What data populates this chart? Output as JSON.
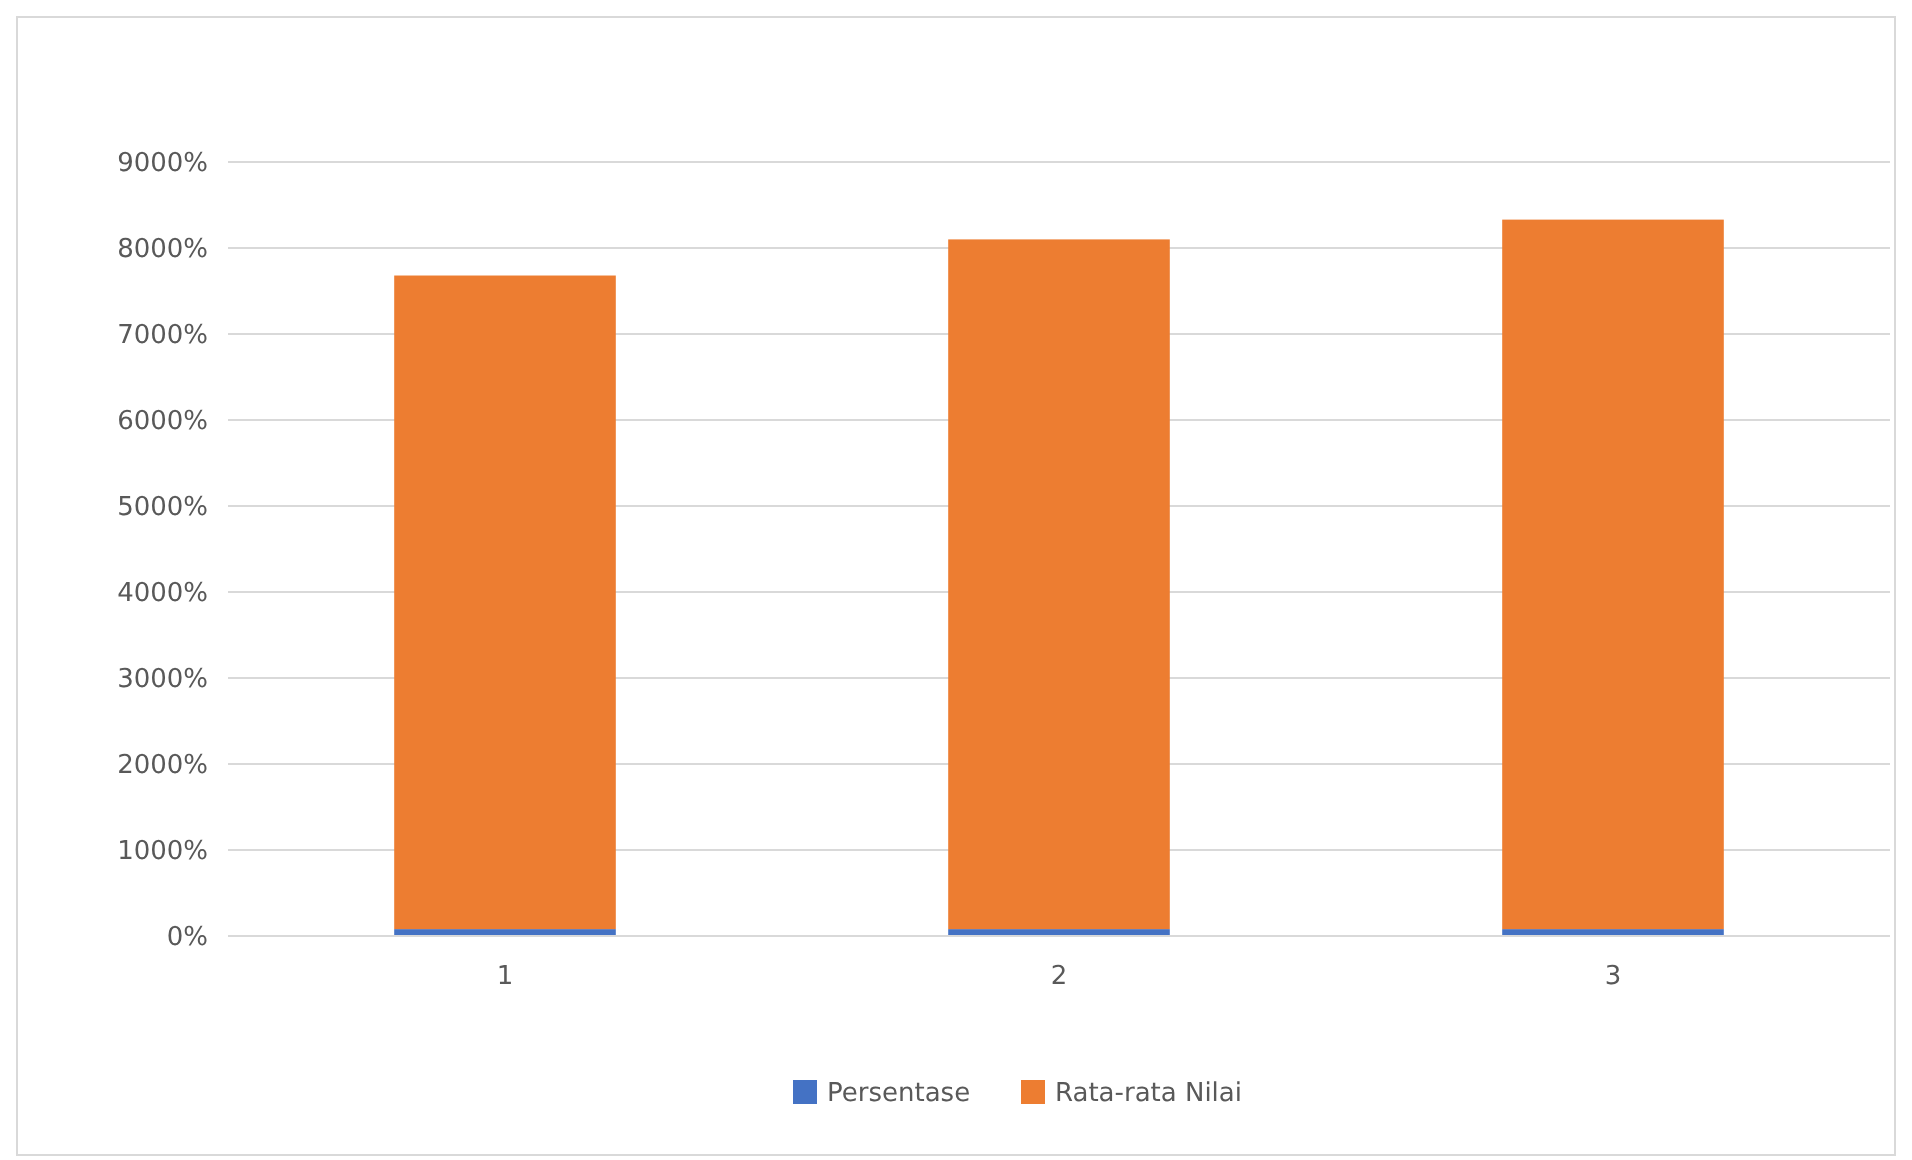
{
  "chart_data": {
    "type": "bar",
    "stacked": true,
    "categories": [
      "1",
      "2",
      "3"
    ],
    "series": [
      {
        "name": "Persentase",
        "color": "#4472c4",
        "values": [
          80,
          80,
          80
        ]
      },
      {
        "name": "Rata-rata Nilai",
        "color": "#ed7d31",
        "values": [
          7600,
          8020,
          8250
        ]
      }
    ],
    "ylim": [
      0,
      9000
    ],
    "yticks": [
      {
        "value": 0,
        "label": "0%"
      },
      {
        "value": 1000,
        "label": "1000%"
      },
      {
        "value": 2000,
        "label": "2000%"
      },
      {
        "value": 3000,
        "label": "3000%"
      },
      {
        "value": 4000,
        "label": "4000%"
      },
      {
        "value": 5000,
        "label": "5000%"
      },
      {
        "value": 6000,
        "label": "6000%"
      },
      {
        "value": 7000,
        "label": "7000%"
      },
      {
        "value": 8000,
        "label": "8000%"
      },
      {
        "value": 9000,
        "label": "9000%"
      }
    ],
    "grid": "y",
    "legend": "bottom"
  }
}
